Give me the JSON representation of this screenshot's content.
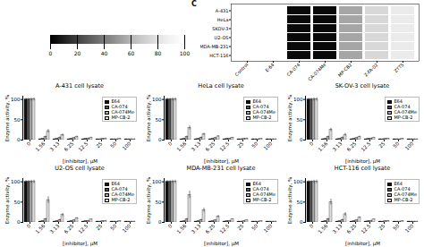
{
  "chart_data": [
    {
      "type": "heatmap",
      "annotation": "C",
      "categories": [
        "Control",
        "E-64",
        "CA-074",
        "CA-074Me",
        "MP-CB2",
        "Z-FA-02",
        "ZTTS"
      ],
      "rows": [
        "A-431",
        "HeLa",
        "SKOV-3",
        "U2-OS",
        "MDA-MB-231",
        "HCT-116"
      ],
      "values": [
        [
          100,
          100,
          3,
          3,
          55,
          75,
          85
        ],
        [
          100,
          100,
          3,
          3,
          55,
          75,
          85
        ],
        [
          100,
          100,
          3,
          3,
          55,
          75,
          85
        ],
        [
          100,
          100,
          3,
          3,
          55,
          75,
          85
        ],
        [
          100,
          100,
          3,
          3,
          55,
          75,
          85
        ],
        [
          100,
          100,
          3,
          3,
          55,
          75,
          85
        ]
      ],
      "colorbar_range": [
        0,
        100
      ],
      "colorbar_ticks": [
        0,
        20,
        40,
        60,
        80,
        100
      ]
    },
    {
      "type": "bar",
      "title": "A-431 cell lysate",
      "xlabel": "[inhibitor], μM",
      "ylabel": "Enzyme activity, %",
      "categories": [
        "0",
        "1.56",
        "3.13",
        "6.25",
        "12.5",
        "25",
        "50",
        "100"
      ],
      "series": [
        {
          "name": "E64",
          "color": "#111111",
          "values": [
            100,
            2,
            2,
            2,
            2,
            2,
            2,
            2
          ],
          "errors": [
            3,
            1,
            1,
            1,
            1,
            1,
            1,
            1
          ]
        },
        {
          "name": "CA-074",
          "color": "#555555",
          "values": [
            100,
            3,
            3,
            3,
            3,
            2,
            2,
            2
          ],
          "errors": [
            3,
            1,
            1,
            1,
            1,
            1,
            1,
            1
          ]
        },
        {
          "name": "CA-074Me",
          "color": "#aaaaaa",
          "values": [
            100,
            8,
            6,
            5,
            4,
            3,
            2,
            2
          ],
          "errors": [
            4,
            2,
            2,
            1,
            1,
            1,
            1,
            1
          ]
        },
        {
          "name": "MP-CB-2",
          "color": "#dddddd",
          "values": [
            100,
            22,
            12,
            8,
            6,
            4,
            3,
            2
          ],
          "errors": [
            4,
            4,
            3,
            2,
            1,
            1,
            1,
            1
          ]
        }
      ],
      "ylim": [
        0,
        108
      ],
      "yticks": [
        0,
        50,
        100
      ],
      "grid": false,
      "legend": "upper right"
    },
    {
      "type": "bar",
      "title": "HeLa cell lysate",
      "xlabel": "[inhibitor], μM",
      "ylabel": "Enzyme activity, %",
      "categories": [
        "0",
        "1.56",
        "3.13",
        "6.25",
        "12.5",
        "25",
        "50",
        "100"
      ],
      "series": [
        {
          "name": "E64",
          "color": "#111111",
          "values": [
            100,
            2,
            2,
            2,
            2,
            2,
            2,
            2
          ],
          "errors": [
            3,
            1,
            1,
            1,
            1,
            1,
            1,
            1
          ]
        },
        {
          "name": "CA-074",
          "color": "#555555",
          "values": [
            100,
            3,
            3,
            3,
            3,
            2,
            2,
            2
          ],
          "errors": [
            3,
            1,
            1,
            1,
            1,
            1,
            1,
            1
          ]
        },
        {
          "name": "CA-074Me",
          "color": "#aaaaaa",
          "values": [
            100,
            8,
            6,
            5,
            4,
            3,
            2,
            2
          ],
          "errors": [
            4,
            2,
            2,
            1,
            1,
            1,
            1,
            1
          ]
        },
        {
          "name": "MP-CB-2",
          "color": "#dddddd",
          "values": [
            100,
            30,
            14,
            9,
            6,
            4,
            3,
            2
          ],
          "errors": [
            4,
            5,
            3,
            2,
            1,
            1,
            1,
            1
          ]
        }
      ],
      "ylim": [
        0,
        108
      ],
      "yticks": [
        0,
        50,
        100
      ],
      "grid": false,
      "legend": "upper right"
    },
    {
      "type": "bar",
      "title": "SK-OV-3 cell lysate",
      "xlabel": "[inhibitor], μM",
      "ylabel": "Enzyme activity, %",
      "categories": [
        "0",
        "1.56",
        "3.13",
        "6.25",
        "12.5",
        "25",
        "50",
        "100"
      ],
      "series": [
        {
          "name": "E64",
          "color": "#111111",
          "values": [
            100,
            2,
            2,
            2,
            2,
            2,
            2,
            2
          ],
          "errors": [
            3,
            1,
            1,
            1,
            1,
            1,
            1,
            1
          ]
        },
        {
          "name": "CA-074",
          "color": "#555555",
          "values": [
            100,
            3,
            3,
            3,
            3,
            2,
            2,
            2
          ],
          "errors": [
            3,
            1,
            1,
            1,
            1,
            1,
            1,
            1
          ]
        },
        {
          "name": "CA-074Me",
          "color": "#aaaaaa",
          "values": [
            100,
            8,
            6,
            5,
            4,
            3,
            2,
            2
          ],
          "errors": [
            4,
            2,
            2,
            1,
            1,
            1,
            1,
            1
          ]
        },
        {
          "name": "MP-CB-2",
          "color": "#dddddd",
          "values": [
            100,
            25,
            13,
            8,
            6,
            4,
            3,
            2
          ],
          "errors": [
            4,
            4,
            3,
            2,
            1,
            1,
            1,
            1
          ]
        }
      ],
      "ylim": [
        0,
        108
      ],
      "yticks": [
        0,
        50,
        100
      ],
      "grid": false,
      "legend": "upper right"
    },
    {
      "type": "bar",
      "title": "U2-OS cell lysate",
      "xlabel": "[inhibitor], μM",
      "ylabel": "Enzyme activity, %",
      "categories": [
        "0",
        "1.56",
        "3.13",
        "6.25",
        "12.5",
        "25",
        "50",
        "100"
      ],
      "series": [
        {
          "name": "E64",
          "color": "#111111",
          "values": [
            100,
            2,
            2,
            2,
            2,
            2,
            2,
            2
          ],
          "errors": [
            3,
            1,
            1,
            1,
            1,
            1,
            1,
            1
          ]
        },
        {
          "name": "CA-074",
          "color": "#555555",
          "values": [
            100,
            3,
            3,
            3,
            3,
            2,
            2,
            2
          ],
          "errors": [
            3,
            1,
            1,
            1,
            1,
            1,
            1,
            1
          ]
        },
        {
          "name": "CA-074Me",
          "color": "#aaaaaa",
          "values": [
            100,
            8,
            6,
            5,
            4,
            3,
            2,
            2
          ],
          "errors": [
            4,
            2,
            2,
            1,
            1,
            1,
            1,
            1
          ]
        },
        {
          "name": "MP-CB-2",
          "color": "#dddddd",
          "values": [
            100,
            55,
            18,
            10,
            7,
            4,
            3,
            2
          ],
          "errors": [
            4,
            8,
            4,
            2,
            1,
            1,
            1,
            1
          ]
        }
      ],
      "ylim": [
        0,
        108
      ],
      "yticks": [
        0,
        50,
        100
      ],
      "grid": false,
      "legend": "upper right"
    },
    {
      "type": "bar",
      "title": "MDA-MB-231 cell lysate",
      "xlabel": "[inhibitor], μM",
      "ylabel": "Enzyme activity, %",
      "categories": [
        "0",
        "1.56",
        "3.13",
        "6.25",
        "12.5",
        "25",
        "50",
        "100"
      ],
      "series": [
        {
          "name": "E64",
          "color": "#111111",
          "values": [
            100,
            2,
            2,
            2,
            2,
            2,
            2,
            2
          ],
          "errors": [
            3,
            1,
            1,
            1,
            1,
            1,
            1,
            1
          ]
        },
        {
          "name": "CA-074",
          "color": "#555555",
          "values": [
            100,
            3,
            3,
            3,
            3,
            2,
            2,
            2
          ],
          "errors": [
            3,
            1,
            1,
            1,
            1,
            1,
            1,
            1
          ]
        },
        {
          "name": "CA-074Me",
          "color": "#aaaaaa",
          "values": [
            100,
            8,
            6,
            5,
            4,
            3,
            2,
            2
          ],
          "errors": [
            4,
            2,
            2,
            1,
            1,
            1,
            1,
            1
          ]
        },
        {
          "name": "MP-CB-2",
          "color": "#dddddd",
          "values": [
            100,
            68,
            30,
            14,
            8,
            5,
            3,
            2
          ],
          "errors": [
            4,
            9,
            5,
            3,
            1,
            1,
            1,
            1
          ]
        }
      ],
      "ylim": [
        0,
        108
      ],
      "yticks": [
        0,
        50,
        100
      ],
      "grid": false,
      "legend": "upper right"
    },
    {
      "type": "bar",
      "title": "HCT-116 cell lysate",
      "xlabel": "[inhibitor], μM",
      "ylabel": "Enzyme activity, %",
      "categories": [
        "0",
        "1.56",
        "3.13",
        "6.25",
        "12.5",
        "25",
        "50",
        "100"
      ],
      "series": [
        {
          "name": "E64",
          "color": "#111111",
          "values": [
            100,
            2,
            2,
            2,
            2,
            2,
            2,
            2
          ],
          "errors": [
            3,
            1,
            1,
            1,
            1,
            1,
            1,
            1
          ]
        },
        {
          "name": "CA-074",
          "color": "#555555",
          "values": [
            100,
            3,
            3,
            3,
            3,
            2,
            2,
            2
          ],
          "errors": [
            3,
            1,
            1,
            1,
            1,
            1,
            1,
            1
          ]
        },
        {
          "name": "CA-074Me",
          "color": "#aaaaaa",
          "values": [
            100,
            8,
            6,
            5,
            4,
            3,
            2,
            2
          ],
          "errors": [
            4,
            2,
            2,
            1,
            1,
            1,
            1,
            1
          ]
        },
        {
          "name": "MP-CB-2",
          "color": "#dddddd",
          "values": [
            100,
            50,
            20,
            12,
            7,
            4,
            3,
            2
          ],
          "errors": [
            4,
            7,
            4,
            2,
            1,
            1,
            1,
            1
          ]
        }
      ],
      "ylim": [
        0,
        108
      ],
      "yticks": [
        0,
        50,
        100
      ],
      "grid": false,
      "legend": "upper right"
    }
  ]
}
